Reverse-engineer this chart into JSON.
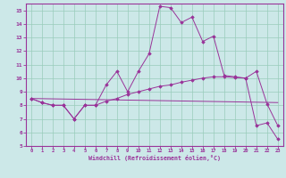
{
  "xlabel": "Windchill (Refroidissement éolien,°C)",
  "background_color": "#cce8e8",
  "grid_color": "#99ccbb",
  "line_color": "#993399",
  "xlim": [
    -0.5,
    23.5
  ],
  "ylim": [
    5,
    15.5
  ],
  "xticks": [
    0,
    1,
    2,
    3,
    4,
    5,
    6,
    7,
    8,
    9,
    10,
    11,
    12,
    13,
    14,
    15,
    16,
    17,
    18,
    19,
    20,
    21,
    22,
    23
  ],
  "yticks": [
    5,
    6,
    7,
    8,
    9,
    10,
    11,
    12,
    13,
    14,
    15
  ],
  "line1_x": [
    0,
    1,
    2,
    3,
    4,
    5,
    6,
    7,
    8,
    9,
    10,
    11,
    12,
    13,
    14,
    15,
    16,
    17,
    18,
    19,
    20,
    21,
    22,
    23
  ],
  "line1_y": [
    8.5,
    8.2,
    8.0,
    8.0,
    7.0,
    8.0,
    8.0,
    9.5,
    10.5,
    9.0,
    10.5,
    11.8,
    15.3,
    15.2,
    14.1,
    14.5,
    12.7,
    13.1,
    10.2,
    10.1,
    10.0,
    10.5,
    8.1,
    6.5
  ],
  "line2_x": [
    0,
    1,
    2,
    3,
    4,
    5,
    6,
    7,
    8,
    9,
    10,
    11,
    12,
    13,
    14,
    15,
    16,
    17,
    18,
    19,
    20,
    21,
    22,
    23
  ],
  "line2_y": [
    8.5,
    8.2,
    8.0,
    8.0,
    7.0,
    8.0,
    8.0,
    8.3,
    8.5,
    8.8,
    9.0,
    9.2,
    9.4,
    9.5,
    9.7,
    9.85,
    10.0,
    10.1,
    10.1,
    10.05,
    10.0,
    6.5,
    6.7,
    5.5
  ],
  "line3_x": [
    0,
    23
  ],
  "line3_y": [
    8.5,
    8.2
  ]
}
